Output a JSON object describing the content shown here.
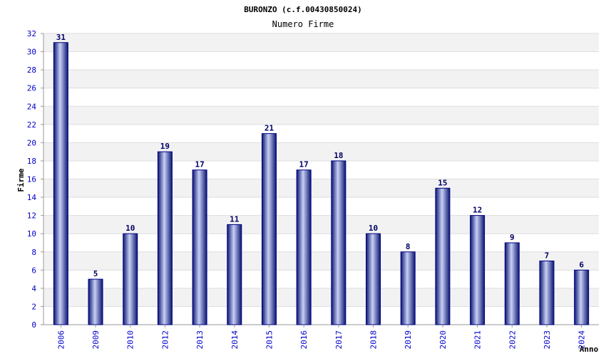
{
  "chart_data": {
    "type": "bar",
    "title": "BURONZO (c.f.00430850024)",
    "subtitle": "Numero Firme",
    "xlabel": "Anno",
    "ylabel": "Firme",
    "categories": [
      "2006",
      "2009",
      "2010",
      "2012",
      "2013",
      "2014",
      "2015",
      "2016",
      "2017",
      "2018",
      "2019",
      "2020",
      "2021",
      "2022",
      "2023",
      "2024"
    ],
    "values": [
      31,
      5,
      10,
      19,
      17,
      11,
      21,
      17,
      18,
      10,
      8,
      15,
      12,
      9,
      7,
      6
    ],
    "ylim": [
      0,
      32
    ],
    "ytick_step": 2,
    "grid": true,
    "legend": "none",
    "colors": {
      "bar_edge": "#000080",
      "bar_mid": "#c0c8f0",
      "bar_dark": "#1a237e",
      "band": "#f2f2f2",
      "tick_text": "#0000cc",
      "value_text": "#000066"
    }
  }
}
